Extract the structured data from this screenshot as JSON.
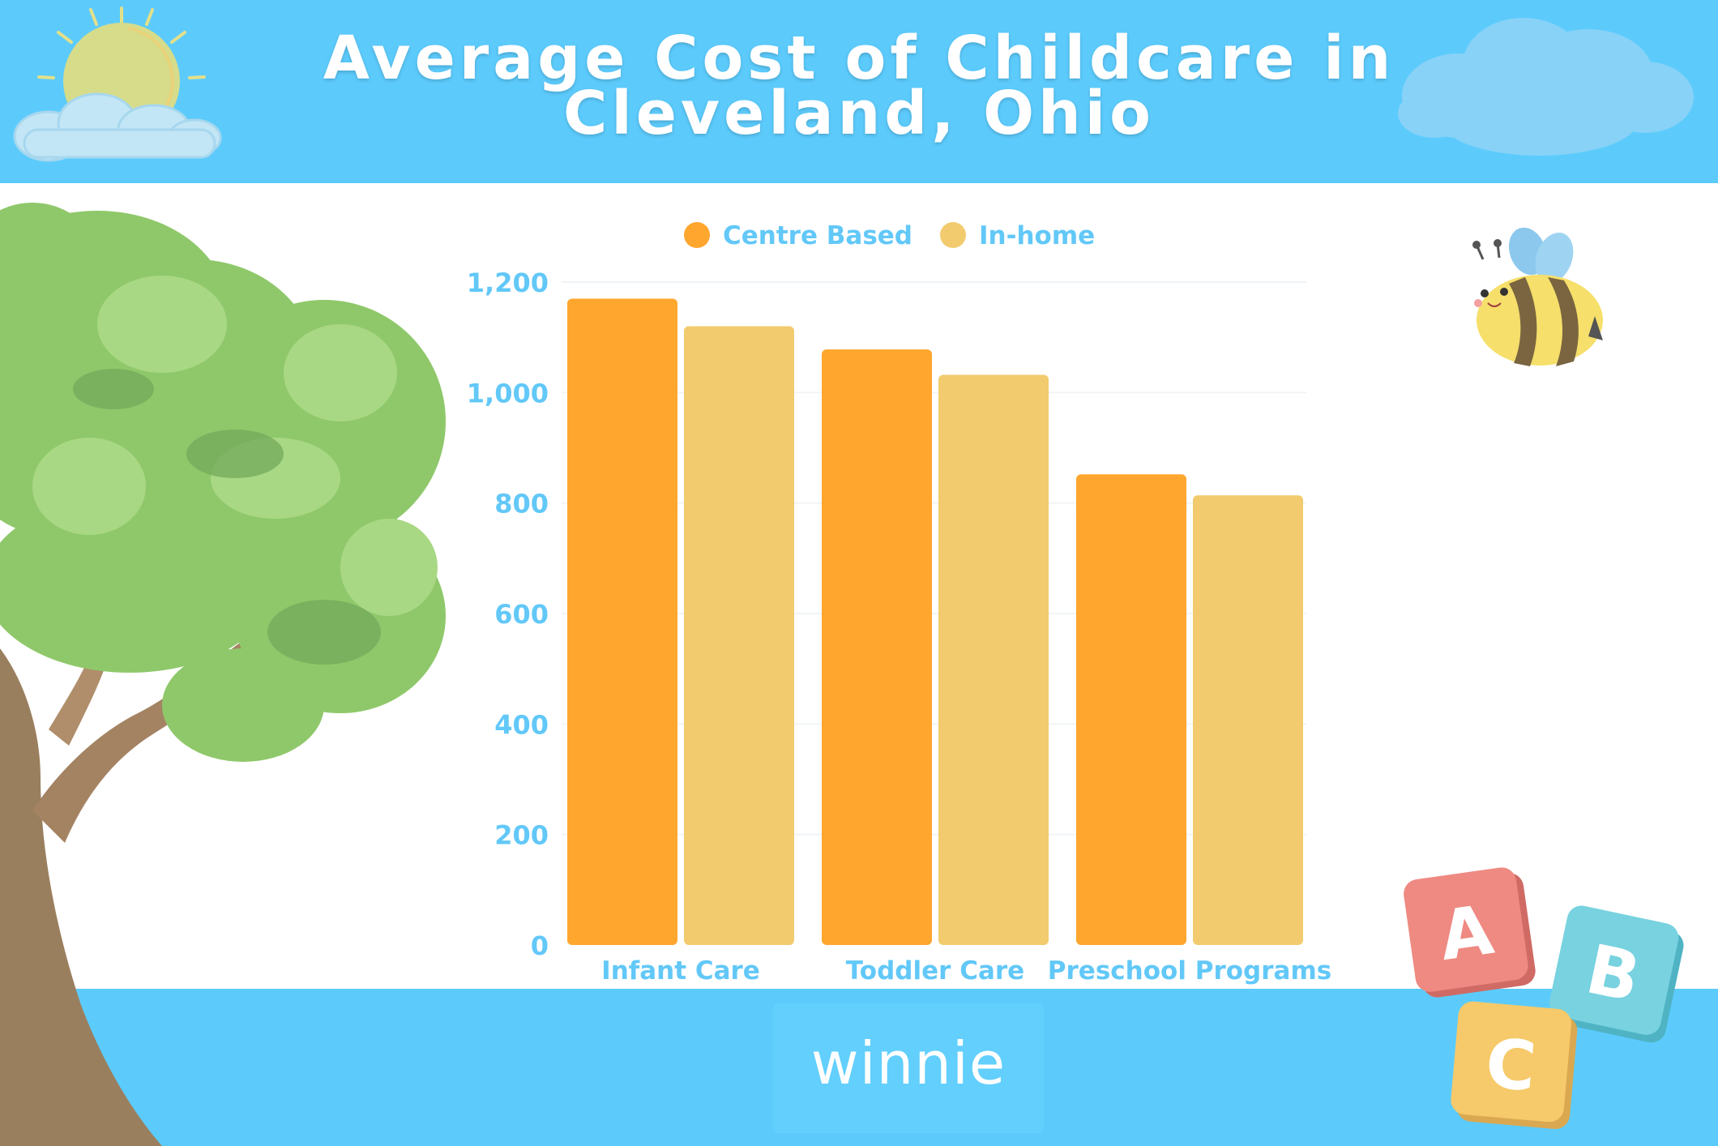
{
  "title_line1": "Average Cost of Childcare in",
  "title_line2": "Cleveland, Ohio",
  "logo": "winnie",
  "colors": {
    "band": "#5ccbfc",
    "axis_text": "#62c8f8",
    "centre_based": "#ffa62e",
    "in_home": "#f2cb6e"
  },
  "icons": [
    "sun-icon",
    "cloud-icon",
    "tree-illustration",
    "bee-icon",
    "abc-blocks-icon"
  ],
  "chart_data": {
    "type": "bar",
    "title": "",
    "xlabel": "",
    "ylabel": "",
    "categories": [
      "Infant Care",
      "Toddler Care",
      "Preschool Programs"
    ],
    "series": [
      {
        "name": "Centre Based",
        "values": [
          1170,
          1078,
          852
        ]
      },
      {
        "name": "In-home",
        "values": [
          1120,
          1032,
          814
        ]
      }
    ],
    "ylim": [
      0,
      1200
    ],
    "yticks": [
      0,
      200,
      400,
      600,
      800,
      1000,
      1200
    ],
    "ytick_labels": [
      "0",
      "200",
      "400",
      "600",
      "800",
      "1,000",
      "1,200"
    ],
    "grid": true,
    "legend_position": "top"
  }
}
